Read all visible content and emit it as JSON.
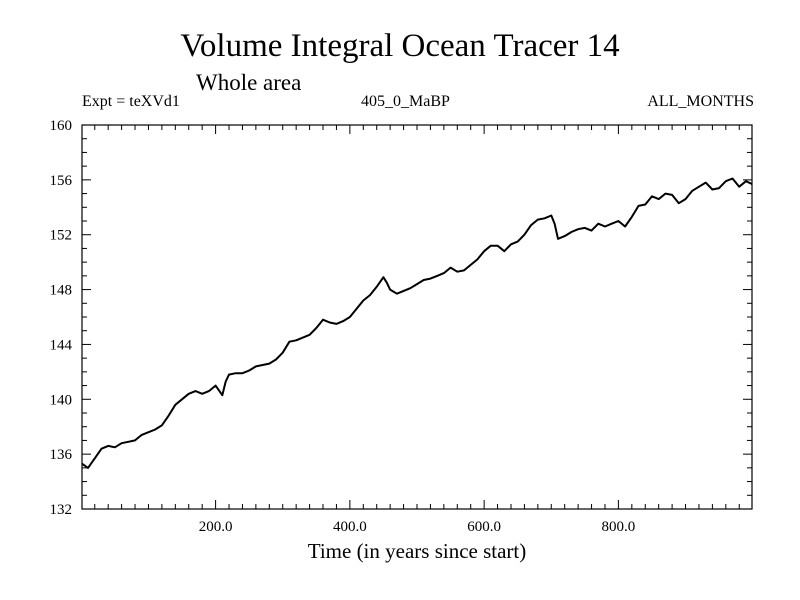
{
  "chart_data": {
    "type": "line",
    "title": "Volume Integral Ocean Tracer 14",
    "subtitle": "Whole area",
    "header_left": "Expt = teXVd1",
    "header_center": "405_0_MaBP",
    "header_right": "ALL_MONTHS",
    "xlabel": "Time (in years since start)",
    "ylabel": "",
    "xlim": [
      1,
      999
    ],
    "ylim": [
      132,
      160
    ],
    "x_ticks": [
      200,
      400,
      600,
      800
    ],
    "x_tick_labels": [
      "200.0",
      "400.0",
      "600.0",
      "800.0"
    ],
    "y_ticks": [
      132,
      136,
      140,
      144,
      148,
      152,
      156,
      160
    ],
    "y_tick_labels": [
      "132",
      "136",
      "140",
      "144",
      "148",
      "152",
      "156",
      "160"
    ],
    "grid": false,
    "series": [
      {
        "name": "Volume Integral Ocean Tracer 14",
        "x": [
          1,
          10,
          20,
          30,
          40,
          50,
          60,
          70,
          80,
          90,
          100,
          110,
          120,
          130,
          140,
          150,
          160,
          170,
          180,
          190,
          200,
          210,
          215,
          220,
          230,
          240,
          250,
          260,
          270,
          280,
          290,
          300,
          310,
          320,
          330,
          340,
          350,
          360,
          370,
          380,
          390,
          400,
          410,
          420,
          430,
          440,
          450,
          455,
          460,
          470,
          480,
          490,
          500,
          510,
          520,
          530,
          540,
          550,
          560,
          570,
          580,
          590,
          600,
          610,
          620,
          630,
          640,
          650,
          660,
          670,
          680,
          690,
          700,
          705,
          710,
          720,
          730,
          740,
          750,
          760,
          770,
          780,
          790,
          800,
          810,
          820,
          830,
          840,
          850,
          860,
          870,
          880,
          890,
          900,
          910,
          920,
          930,
          940,
          950,
          960,
          970,
          980,
          990,
          999
        ],
        "values": [
          135.3,
          135.0,
          135.7,
          136.4,
          136.6,
          136.5,
          136.8,
          136.9,
          137.0,
          137.4,
          137.6,
          137.8,
          138.1,
          138.8,
          139.6,
          140.0,
          140.4,
          140.6,
          140.4,
          140.6,
          141.0,
          140.3,
          141.3,
          141.8,
          141.9,
          141.9,
          142.1,
          142.4,
          142.5,
          142.6,
          142.9,
          143.4,
          144.2,
          144.3,
          144.5,
          144.7,
          145.2,
          145.8,
          145.6,
          145.5,
          145.7,
          146.0,
          146.6,
          147.2,
          147.6,
          148.2,
          148.9,
          148.5,
          148.0,
          147.7,
          147.9,
          148.1,
          148.4,
          148.7,
          148.8,
          149.0,
          149.2,
          149.6,
          149.3,
          149.4,
          149.8,
          150.2,
          150.8,
          151.2,
          151.2,
          150.8,
          151.3,
          151.5,
          152.0,
          152.7,
          153.1,
          153.2,
          153.4,
          152.8,
          151.7,
          151.9,
          152.2,
          152.4,
          152.5,
          152.3,
          152.8,
          152.6,
          152.8,
          153.0,
          152.6,
          153.3,
          154.1,
          154.2,
          154.8,
          154.6,
          155.0,
          154.9,
          154.3,
          154.6,
          155.2,
          155.5,
          155.8,
          155.3,
          155.4,
          155.9,
          156.1,
          155.5,
          155.9,
          155.7
        ]
      }
    ]
  }
}
